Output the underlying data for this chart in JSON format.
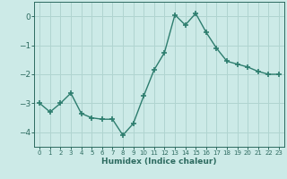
{
  "x": [
    0,
    1,
    2,
    3,
    4,
    5,
    6,
    7,
    8,
    9,
    10,
    11,
    12,
    13,
    14,
    15,
    16,
    17,
    18,
    19,
    20,
    21,
    22,
    23
  ],
  "y": [
    -3.0,
    -3.3,
    -3.0,
    -2.65,
    -3.35,
    -3.5,
    -3.55,
    -3.55,
    -4.1,
    -3.7,
    -2.75,
    -1.85,
    -1.25,
    0.05,
    -0.3,
    0.1,
    -0.55,
    -1.1,
    -1.55,
    -1.65,
    -1.75,
    -1.9,
    -2.0,
    -2.0
  ],
  "line_color": "#2d7d6e",
  "marker": "+",
  "marker_size": 4,
  "bg_color": "#cceae7",
  "grid_color": "#b0d4d0",
  "tick_color": "#2d6b60",
  "xlabel": "Humidex (Indice chaleur)",
  "xlim": [
    -0.5,
    23.5
  ],
  "ylim": [
    -4.5,
    0.5
  ],
  "yticks": [
    0,
    -1,
    -2,
    -3,
    -4
  ],
  "xticks": [
    0,
    1,
    2,
    3,
    4,
    5,
    6,
    7,
    8,
    9,
    10,
    11,
    12,
    13,
    14,
    15,
    16,
    17,
    18,
    19,
    20,
    21,
    22,
    23
  ],
  "xlabel_fontsize": 6.5,
  "xtick_fontsize": 5.0,
  "ytick_fontsize": 6.5
}
